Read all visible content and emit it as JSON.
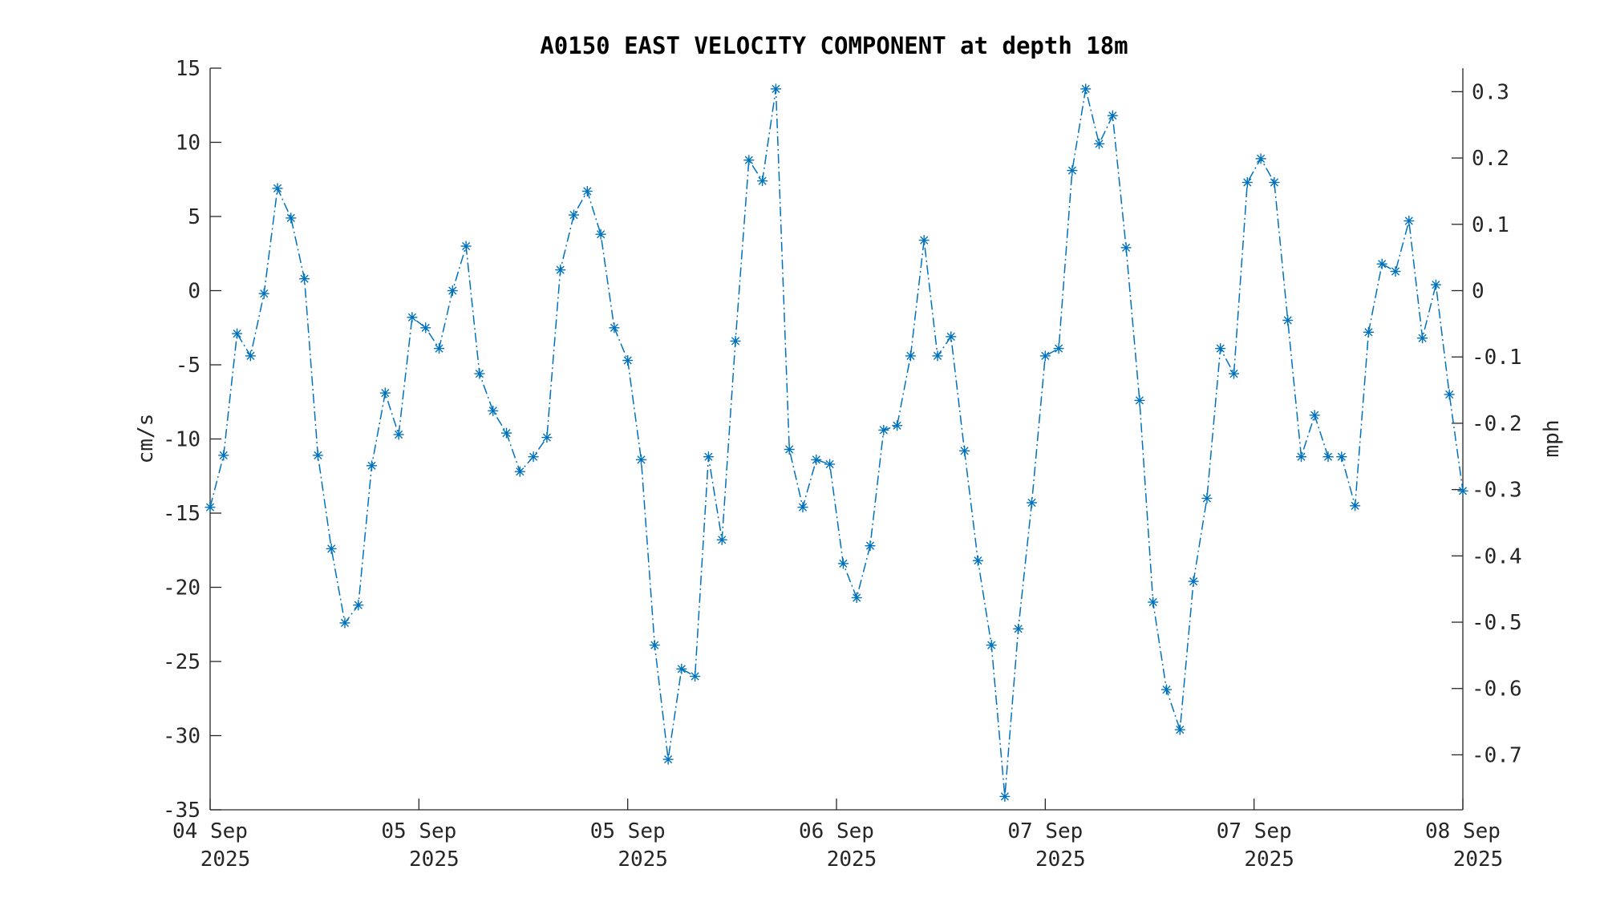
{
  "chart_data": {
    "type": "line",
    "title": "A0150 EAST VELOCITY COMPONENT at depth 18m",
    "ylabel": "cm/s",
    "y2label": "mph",
    "ylim": [
      -35,
      15
    ],
    "y2lim": [
      -0.7829,
      0.3355
    ],
    "yticks": [
      15,
      10,
      5,
      0,
      -5,
      -10,
      -15,
      -20,
      -25,
      -30,
      -35
    ],
    "y2ticks": [
      0.3,
      0.2,
      0.1,
      0,
      -0.1,
      -0.2,
      -0.3,
      -0.4,
      -0.5,
      -0.6,
      -0.7
    ],
    "xlim": [
      0,
      96
    ],
    "xticks": [
      {
        "hours": 0,
        "day": "04 Sep",
        "year": "2025"
      },
      {
        "hours": 16,
        "day": "05 Sep",
        "year": "2025"
      },
      {
        "hours": 32,
        "day": "05 Sep",
        "year": "2025"
      },
      {
        "hours": 48,
        "day": "06 Sep",
        "year": "2025"
      },
      {
        "hours": 64,
        "day": "07 Sep",
        "year": "2025"
      },
      {
        "hours": 80,
        "day": "07 Sep",
        "year": "2025"
      },
      {
        "hours": 96,
        "day": "08 Sep",
        "year": "2025"
      }
    ],
    "grid": false,
    "series": [
      {
        "color": "#0072bd",
        "line_style": "dash-dot",
        "marker": "asterisk",
        "values": [
          -14.6,
          -11.1,
          -2.9,
          -4.4,
          -0.2,
          6.9,
          4.9,
          0.8,
          -11.1,
          -17.4,
          -22.4,
          -21.2,
          -11.8,
          -6.9,
          -9.7,
          -1.8,
          -2.5,
          -3.9,
          0.0,
          3.0,
          -5.6,
          -8.1,
          -9.6,
          -12.2,
          -11.2,
          -9.9,
          1.4,
          5.1,
          6.7,
          3.8,
          -2.5,
          -4.7,
          -11.4,
          -23.9,
          -31.6,
          -25.5,
          -26.0,
          -11.2,
          -16.8,
          -3.4,
          8.8,
          7.4,
          13.6,
          -10.7,
          -14.6,
          -11.4,
          -11.7,
          -18.4,
          -20.7,
          -17.2,
          -9.4,
          -9.1,
          -4.4,
          3.4,
          -4.4,
          -3.1,
          -10.8,
          -18.2,
          -23.9,
          -34.1,
          -22.8,
          -14.3,
          -4.4,
          -3.9,
          8.1,
          13.6,
          9.9,
          11.8,
          2.9,
          -7.4,
          -21.0,
          -26.9,
          -29.6,
          -19.6,
          -14.0,
          -3.9,
          -5.6,
          7.3,
          8.9,
          7.3,
          -2.0,
          -11.2,
          -8.4,
          -11.2,
          -11.2,
          -14.5,
          -2.8,
          1.8,
          1.3,
          4.7,
          -3.2,
          0.4,
          -7.0,
          -13.5
        ]
      }
    ]
  }
}
